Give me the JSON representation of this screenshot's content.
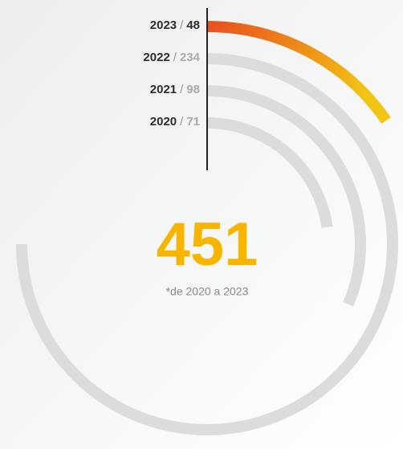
{
  "chart_data": {
    "type": "radial_bar",
    "categories": [
      "2023",
      "2022",
      "2021",
      "2020"
    ],
    "values": [
      48,
      234,
      98,
      71
    ],
    "separator": "/",
    "total": 451,
    "note": "*de 2020 a 2023",
    "color": "#dcdcdc",
    "highlight_colors": [
      "#e8501e",
      "#f2c414"
    ],
    "total_color": "#f7b500"
  }
}
